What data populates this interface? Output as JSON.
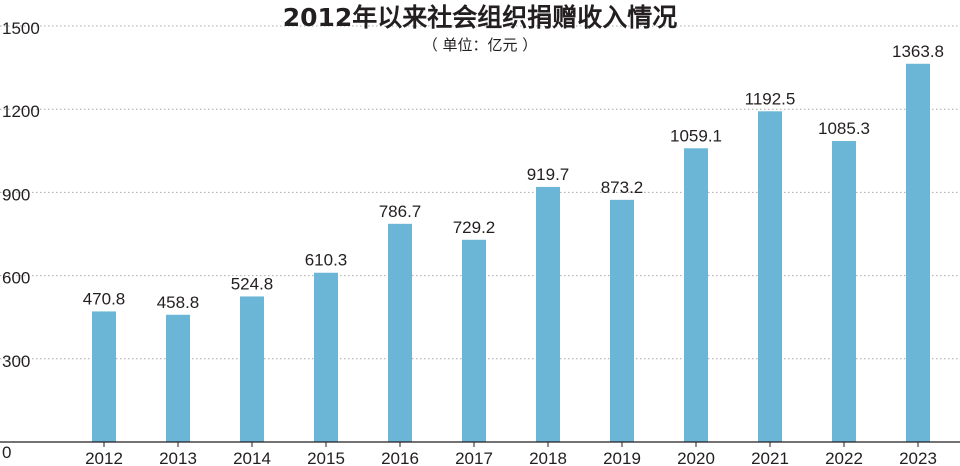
{
  "chart_data": {
    "type": "bar",
    "title": "2012年以来社会组织捐赠收入情况",
    "subtitle": "（ 单位：亿元 ）",
    "categories": [
      "2012",
      "2013",
      "2014",
      "2015",
      "2016",
      "2017",
      "2018",
      "2019",
      "2020",
      "2021",
      "2022",
      "2023"
    ],
    "values": [
      470.8,
      458.8,
      524.8,
      610.3,
      786.7,
      729.2,
      919.7,
      873.2,
      1059.1,
      1192.5,
      1085.3,
      1363.8
    ],
    "value_labels": [
      "470.8",
      "458.8",
      "524.8",
      "610.3",
      "786.7",
      "729.2",
      "919.7",
      "873.2",
      "1059.1",
      "1192.5",
      "1085.3",
      "1363.8"
    ],
    "y_ticks": [
      0,
      300,
      600,
      900,
      1200,
      1500
    ],
    "ylim": [
      0,
      1500
    ],
    "grid": true,
    "bar_color": "#6bb5d6",
    "grid_color": "#a7a9ac"
  }
}
